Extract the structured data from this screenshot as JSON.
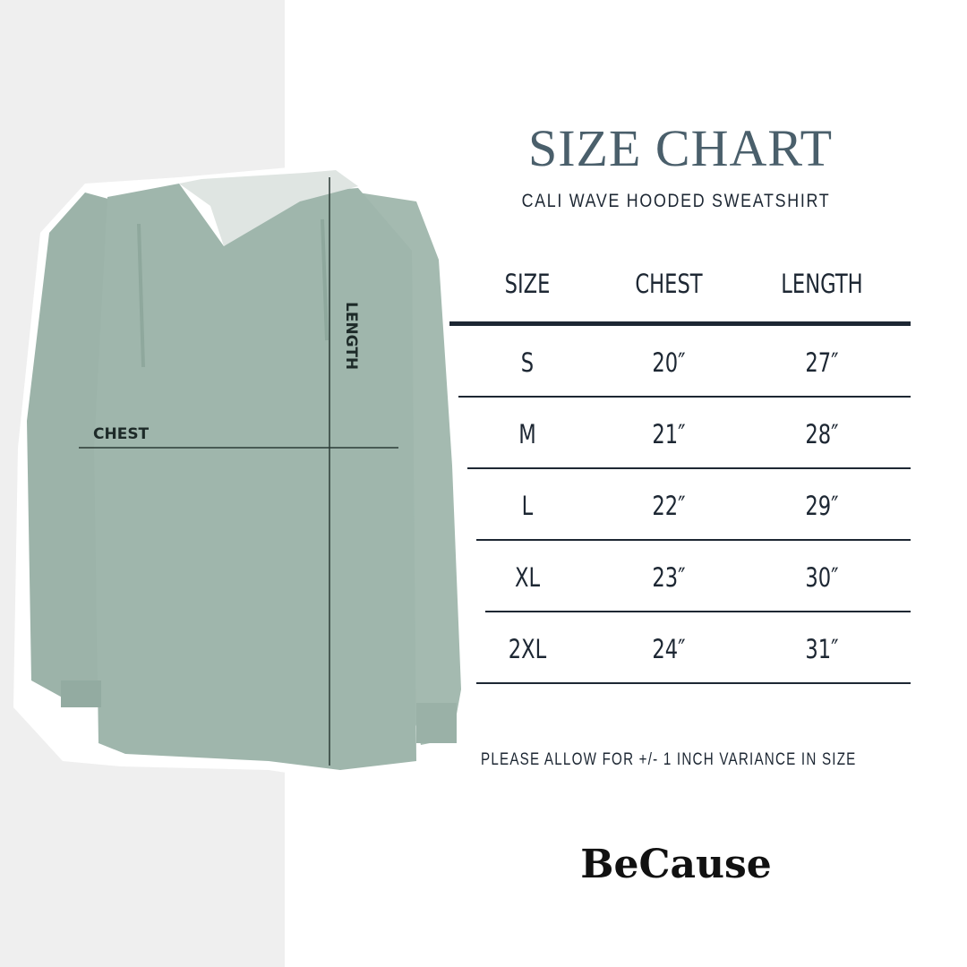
{
  "header": {
    "title": "SIZE CHART",
    "subtitle": "CALI WAVE HOODED SWEATSHIRT"
  },
  "diagram": {
    "chest_label": "CHEST",
    "length_label": "LENGTH",
    "garment_color": "#9db4aa",
    "hood_color": "#dfe5e2"
  },
  "table": {
    "columns": [
      "SIZE",
      "CHEST",
      "LENGTH"
    ],
    "rows": [
      {
        "size": "S",
        "chest": "20″",
        "length": "27″"
      },
      {
        "size": "M",
        "chest": "21″",
        "length": "28″"
      },
      {
        "size": "L",
        "chest": "22″",
        "length": "29″"
      },
      {
        "size": "XL",
        "chest": "23″",
        "length": "30″"
      },
      {
        "size": "2XL",
        "chest": "24″",
        "length": "31″"
      }
    ]
  },
  "note": "PLEASE ALLOW FOR +/- 1 INCH VARIANCE IN SIZE",
  "brand": "BeCause"
}
